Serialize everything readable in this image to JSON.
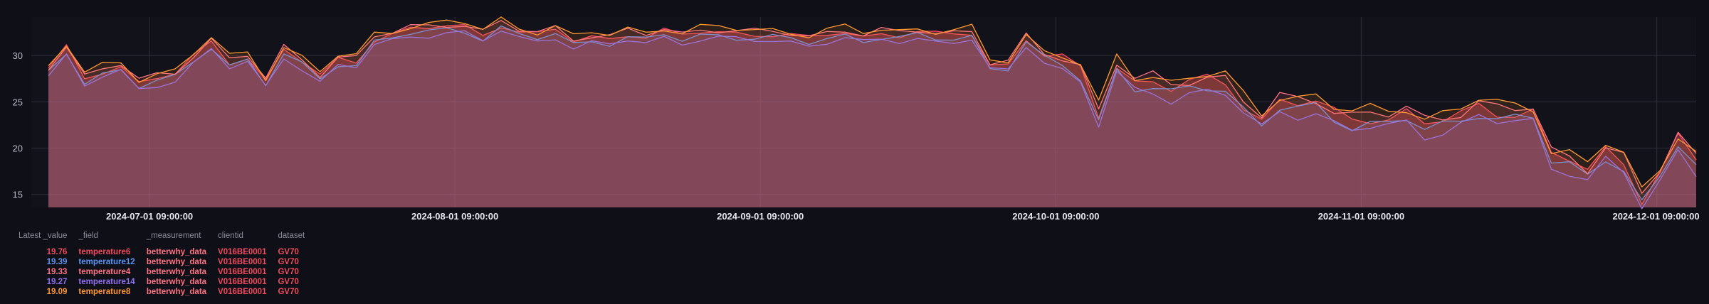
{
  "chart_data": {
    "type": "area",
    "x_ticks": [
      "2024-07-01 09:00:00",
      "2024-08-01 09:00:00",
      "2024-09-01 09:00:00",
      "2024-10-01 09:00:00",
      "2024-11-01 09:00:00",
      "2024-12-01 09:00:00"
    ],
    "x_range": [
      "2024-06-19",
      "2024-12-05"
    ],
    "y_ticks": [
      15,
      20,
      25,
      30
    ],
    "ylim": [
      13.6,
      34.0
    ],
    "grid": true,
    "base_values": [
      28.5,
      30.8,
      27.6,
      28.4,
      28.8,
      27.0,
      27.6,
      28.0,
      29.8,
      31.5,
      29.4,
      29.8,
      27.2,
      30.6,
      29.4,
      27.8,
      29.6,
      29.5,
      31.8,
      32.2,
      32.8,
      33.0,
      33.2,
      33.1,
      32.3,
      33.4,
      32.5,
      32.2,
      32.8,
      31.6,
      32.0,
      31.8,
      32.4,
      32.0,
      32.6,
      32.1,
      32.6,
      32.6,
      32.4,
      32.3,
      32.3,
      32.1,
      31.8,
      32.3,
      32.6,
      32.0,
      32.4,
      32.2,
      32.5,
      32.2,
      32.3,
      32.5,
      29.0,
      29.0,
      31.8,
      30.0,
      29.5,
      28.5,
      23.8,
      29.0,
      27.0,
      27.2,
      26.4,
      27.0,
      27.4,
      27.2,
      24.8,
      23.0,
      25.0,
      24.8,
      25.0,
      23.8,
      23.2,
      23.4,
      23.2,
      23.8,
      22.6,
      23.0,
      23.6,
      24.6,
      24.0,
      23.8,
      23.8,
      19.2,
      18.8,
      17.6,
      19.8,
      18.6,
      14.6,
      17.2,
      21.0,
      18.8
    ],
    "series": [
      {
        "name": "temperature6",
        "color": "#f2495c",
        "offset": 0.0,
        "latest": "19.76"
      },
      {
        "name": "temperature12",
        "color": "#5794f2",
        "offset": -0.4,
        "latest": "19.39"
      },
      {
        "name": "temperature4",
        "color": "#ff7383",
        "offset": 0.25,
        "latest": "19.33"
      },
      {
        "name": "temperature14",
        "color": "#8f6ff0",
        "offset": -0.7,
        "latest": "19.27"
      },
      {
        "name": "temperature8",
        "color": "#ff9830",
        "offset": 0.45,
        "latest": "19.09"
      }
    ]
  },
  "legend": {
    "headers": [
      "Latest _value",
      "_field",
      "_measurement",
      "clientid",
      "dataset"
    ],
    "rows": [
      {
        "value": "19.76",
        "field": "temperature6",
        "measurement": "betterwhy_data",
        "clientid": "V016BE0001",
        "dataset": "GV70",
        "color": "#f2495c"
      },
      {
        "value": "19.39",
        "field": "temperature12",
        "measurement": "betterwhy_data",
        "clientid": "V016BE0001",
        "dataset": "GV70",
        "color": "#5794f2"
      },
      {
        "value": "19.33",
        "field": "temperature4",
        "measurement": "betterwhy_data",
        "clientid": "V016BE0001",
        "dataset": "GV70",
        "color": "#ff7383"
      },
      {
        "value": "19.27",
        "field": "temperature14",
        "measurement": "betterwhy_data",
        "clientid": "V016BE0001",
        "dataset": "GV70",
        "color": "#8f6ff0"
      },
      {
        "value": "19.09",
        "field": "temperature8",
        "measurement": "betterwhy_data",
        "clientid": "V016BE0001",
        "dataset": "GV70",
        "color": "#ff9830"
      }
    ],
    "clientid_color": "#f2495c",
    "dataset_color": "#f2495c",
    "measurement_color": "#ff7383"
  }
}
